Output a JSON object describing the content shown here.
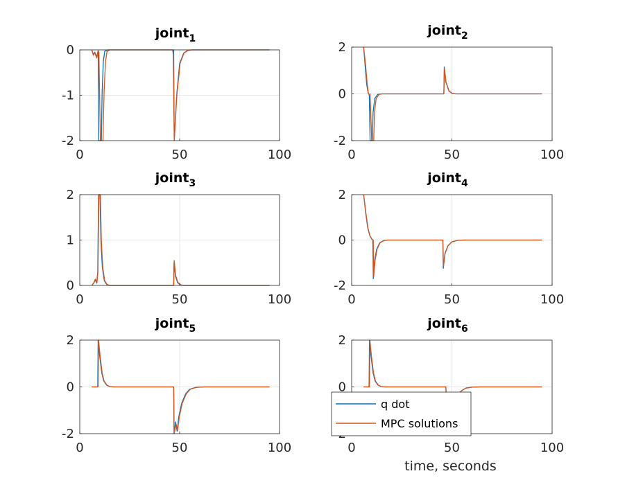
{
  "chart_data": [
    {
      "type": "line",
      "title_main": "joint",
      "title_sub": "1",
      "xlim": [
        0,
        100
      ],
      "ylim": [
        -2,
        0
      ],
      "xticks": [
        0,
        50,
        100
      ],
      "yticks": [
        -2,
        -1,
        0
      ],
      "grid": true,
      "series": [
        {
          "values": [
            [
              6,
              0
            ],
            [
              6.8,
              -0.1
            ],
            [
              7.5,
              -0.05
            ],
            [
              8.5,
              -0.15
            ],
            [
              9.2,
              -0.02
            ],
            [
              9.5,
              -2
            ],
            [
              10.8,
              -2
            ],
            [
              11.2,
              -0.9
            ],
            [
              11.8,
              -0.25
            ],
            [
              12.5,
              -0.03
            ],
            [
              14,
              0
            ],
            [
              47,
              0
            ],
            [
              47.3,
              -2
            ],
            [
              48.5,
              -1.0
            ],
            [
              50,
              -0.3
            ],
            [
              52,
              -0.07
            ],
            [
              54,
              -0.01
            ],
            [
              56,
              0
            ],
            [
              95,
              0
            ]
          ]
        },
        {
          "values": [
            [
              6,
              0
            ],
            [
              6.8,
              -0.12
            ],
            [
              7.5,
              -0.06
            ],
            [
              8.5,
              -0.18
            ],
            [
              9.2,
              -0.02
            ],
            [
              9.6,
              -0.05
            ],
            [
              10.3,
              -2
            ],
            [
              11.6,
              -2
            ],
            [
              12.2,
              -0.9
            ],
            [
              12.9,
              -0.25
            ],
            [
              13.6,
              -0.04
            ],
            [
              15,
              0
            ],
            [
              46.5,
              0
            ],
            [
              46.8,
              -0.1
            ],
            [
              47.3,
              -2
            ],
            [
              48.6,
              -1.0
            ],
            [
              50.2,
              -0.3
            ],
            [
              52.2,
              -0.07
            ],
            [
              54.2,
              -0.01
            ],
            [
              56,
              0
            ],
            [
              95,
              0
            ]
          ]
        }
      ]
    },
    {
      "type": "line",
      "title_main": "joint",
      "title_sub": "2",
      "xlim": [
        0,
        100
      ],
      "ylim": [
        -2,
        2
      ],
      "xticks": [
        0,
        50,
        100
      ],
      "yticks": [
        -2,
        0,
        2
      ],
      "grid": true,
      "series": [
        {
          "values": [
            [
              6,
              2
            ],
            [
              6.8,
              1.1
            ],
            [
              7.5,
              0.4
            ],
            [
              8.2,
              0.05
            ],
            [
              8.8,
              -0.05
            ],
            [
              9.2,
              -2
            ],
            [
              10.3,
              -2
            ],
            [
              10.7,
              -0.8
            ],
            [
              11.5,
              -0.2
            ],
            [
              13,
              -0.02
            ],
            [
              15,
              0
            ],
            [
              46,
              0
            ],
            [
              46.2,
              1.15
            ],
            [
              47,
              0.5
            ],
            [
              48.5,
              0.12
            ],
            [
              50,
              0.02
            ],
            [
              52,
              0
            ],
            [
              95,
              0
            ]
          ]
        },
        {
          "values": [
            [
              6,
              2
            ],
            [
              7,
              1.2
            ],
            [
              7.7,
              0.45
            ],
            [
              8.3,
              0.05
            ],
            [
              8.8,
              -0.05
            ],
            [
              9.2,
              0
            ],
            [
              10,
              -2
            ],
            [
              11,
              -2
            ],
            [
              11.4,
              -0.8
            ],
            [
              12.2,
              -0.2
            ],
            [
              13.7,
              -0.02
            ],
            [
              15.5,
              0
            ],
            [
              46,
              0
            ],
            [
              46.3,
              1.1
            ],
            [
              47.1,
              0.5
            ],
            [
              48.6,
              0.12
            ],
            [
              50.2,
              0.02
            ],
            [
              52,
              0
            ],
            [
              95,
              0
            ]
          ]
        }
      ]
    },
    {
      "type": "line",
      "title_main": "joint",
      "title_sub": "3",
      "xlim": [
        0,
        100
      ],
      "ylim": [
        0,
        2
      ],
      "xticks": [
        0,
        50,
        100
      ],
      "yticks": [
        0,
        1,
        2
      ],
      "grid": true,
      "series": [
        {
          "values": [
            [
              6,
              0
            ],
            [
              7,
              0.05
            ],
            [
              7.8,
              0.12
            ],
            [
              8.5,
              0.05
            ],
            [
              9,
              0.3
            ],
            [
              9.4,
              2
            ],
            [
              10.1,
              2
            ],
            [
              10.6,
              1.0
            ],
            [
              11.3,
              0.4
            ],
            [
              12.3,
              0.1
            ],
            [
              13.5,
              0.02
            ],
            [
              15,
              0
            ],
            [
              47,
              0
            ],
            [
              47.2,
              0.5
            ],
            [
              47.9,
              0.2
            ],
            [
              49,
              0.06
            ],
            [
              50.5,
              0.01
            ],
            [
              52,
              0
            ],
            [
              95,
              0
            ]
          ]
        },
        {
          "values": [
            [
              6,
              0
            ],
            [
              7,
              0.06
            ],
            [
              7.8,
              0.14
            ],
            [
              8.6,
              0.06
            ],
            [
              9.1,
              0.3
            ],
            [
              9.6,
              2
            ],
            [
              10.3,
              2
            ],
            [
              10.8,
              1.0
            ],
            [
              11.5,
              0.4
            ],
            [
              12.5,
              0.1
            ],
            [
              13.7,
              0.02
            ],
            [
              15.2,
              0
            ],
            [
              47,
              0
            ],
            [
              47.3,
              0.55
            ],
            [
              48,
              0.22
            ],
            [
              49.1,
              0.07
            ],
            [
              50.6,
              0.01
            ],
            [
              52.2,
              0
            ],
            [
              95,
              0
            ]
          ]
        }
      ]
    },
    {
      "type": "line",
      "title_main": "joint",
      "title_sub": "4",
      "xlim": [
        0,
        100
      ],
      "ylim": [
        -2,
        2
      ],
      "xticks": [
        0,
        50,
        100
      ],
      "yticks": [
        -2,
        0,
        2
      ],
      "grid": true,
      "series": [
        {
          "values": [
            [
              6,
              2
            ],
            [
              7,
              1.2
            ],
            [
              8,
              0.55
            ],
            [
              9,
              0.2
            ],
            [
              10,
              0.04
            ],
            [
              10.6,
              0
            ],
            [
              10.8,
              -1.7
            ],
            [
              11.5,
              -0.9
            ],
            [
              12.5,
              -0.4
            ],
            [
              14,
              -0.12
            ],
            [
              16,
              -0.02
            ],
            [
              18,
              0
            ],
            [
              45.5,
              0
            ],
            [
              45.7,
              -1.25
            ],
            [
              46.5,
              -0.6
            ],
            [
              48,
              -0.25
            ],
            [
              50,
              -0.08
            ],
            [
              53,
              -0.01
            ],
            [
              56,
              0
            ],
            [
              95,
              0
            ]
          ]
        },
        {
          "values": [
            [
              6,
              2
            ],
            [
              7.1,
              1.2
            ],
            [
              8.1,
              0.55
            ],
            [
              9.1,
              0.2
            ],
            [
              10.1,
              0.04
            ],
            [
              10.8,
              0
            ],
            [
              11,
              -1.6
            ],
            [
              11.7,
              -0.9
            ],
            [
              12.7,
              -0.4
            ],
            [
              14.2,
              -0.12
            ],
            [
              16.2,
              -0.02
            ],
            [
              18.2,
              0
            ],
            [
              45.5,
              0
            ],
            [
              45.8,
              -1.15
            ],
            [
              46.6,
              -0.6
            ],
            [
              48.1,
              -0.25
            ],
            [
              50.1,
              -0.08
            ],
            [
              53.1,
              -0.01
            ],
            [
              56.2,
              0
            ],
            [
              95,
              0
            ]
          ]
        }
      ]
    },
    {
      "type": "line",
      "title_main": "joint",
      "title_sub": "5",
      "xlim": [
        0,
        100
      ],
      "ylim": [
        -2,
        2
      ],
      "xticks": [
        0,
        50,
        100
      ],
      "yticks": [
        -2,
        0,
        2
      ],
      "grid": true,
      "series": [
        {
          "values": [
            [
              6,
              0
            ],
            [
              9,
              0
            ],
            [
              9.2,
              2
            ],
            [
              10,
              1.3
            ],
            [
              11,
              0.6
            ],
            [
              12,
              0.25
            ],
            [
              13.5,
              0.07
            ],
            [
              15,
              0.01
            ],
            [
              17,
              0
            ],
            [
              47,
              0
            ],
            [
              47.2,
              -2
            ],
            [
              48,
              -1.5
            ],
            [
              48.8,
              -1.9
            ],
            [
              49.5,
              -1.3
            ],
            [
              51,
              -0.7
            ],
            [
              53,
              -0.3
            ],
            [
              55,
              -0.1
            ],
            [
              58,
              -0.02
            ],
            [
              62,
              0
            ],
            [
              95,
              0
            ]
          ]
        },
        {
          "values": [
            [
              6,
              0
            ],
            [
              9.2,
              0
            ],
            [
              9.4,
              2
            ],
            [
              10.2,
              1.3
            ],
            [
              11.2,
              0.6
            ],
            [
              12.2,
              0.25
            ],
            [
              13.7,
              0.07
            ],
            [
              15.2,
              0.01
            ],
            [
              17.2,
              0
            ],
            [
              47,
              0
            ],
            [
              47.3,
              -2
            ],
            [
              48.2,
              -1.6
            ],
            [
              49,
              -1.85
            ],
            [
              49.8,
              -1.3
            ],
            [
              51.3,
              -0.7
            ],
            [
              53.3,
              -0.3
            ],
            [
              55.3,
              -0.1
            ],
            [
              58.3,
              -0.02
            ],
            [
              62.3,
              0
            ],
            [
              95,
              0
            ]
          ]
        }
      ]
    },
    {
      "type": "line",
      "title_main": "joint",
      "title_sub": "6",
      "xlim": [
        0,
        100
      ],
      "ylim": [
        -2,
        2
      ],
      "xticks": [
        0,
        50,
        100
      ],
      "yticks": [
        -2,
        0,
        2
      ],
      "grid": true,
      "series": [
        {
          "values": [
            [
              6,
              0
            ],
            [
              8.7,
              0
            ],
            [
              8.9,
              2
            ],
            [
              9.7,
              1.3
            ],
            [
              10.7,
              0.6
            ],
            [
              11.7,
              0.25
            ],
            [
              13.2,
              0.07
            ],
            [
              14.7,
              0.01
            ],
            [
              16.5,
              0
            ],
            [
              47,
              0
            ],
            [
              47.2,
              -0.5
            ],
            [
              49,
              -0.6
            ],
            [
              51,
              -0.5
            ],
            [
              53,
              -0.3
            ],
            [
              55,
              -0.15
            ],
            [
              57,
              -0.05
            ],
            [
              60,
              -0.01
            ],
            [
              64,
              0
            ],
            [
              95,
              0
            ]
          ]
        },
        {
          "values": [
            [
              6,
              0
            ],
            [
              8.9,
              0
            ],
            [
              9.1,
              2
            ],
            [
              9.9,
              1.3
            ],
            [
              10.9,
              0.6
            ],
            [
              11.9,
              0.25
            ],
            [
              13.4,
              0.07
            ],
            [
              14.9,
              0.01
            ],
            [
              16.7,
              0
            ],
            [
              47,
              0
            ],
            [
              47.3,
              -0.5
            ],
            [
              49.1,
              -0.6
            ],
            [
              51.1,
              -0.5
            ],
            [
              53.1,
              -0.3
            ],
            [
              55.1,
              -0.15
            ],
            [
              57.1,
              -0.05
            ],
            [
              60.1,
              -0.01
            ],
            [
              64.1,
              0
            ],
            [
              95,
              0
            ]
          ]
        }
      ]
    }
  ],
  "series_colors": [
    "#0072BD",
    "#D95319"
  ],
  "legend": {
    "placement": "bottom-left of joint 6 panel",
    "entries": [
      "q dot",
      "MPC solutions"
    ]
  },
  "xlabel": "time, seconds"
}
